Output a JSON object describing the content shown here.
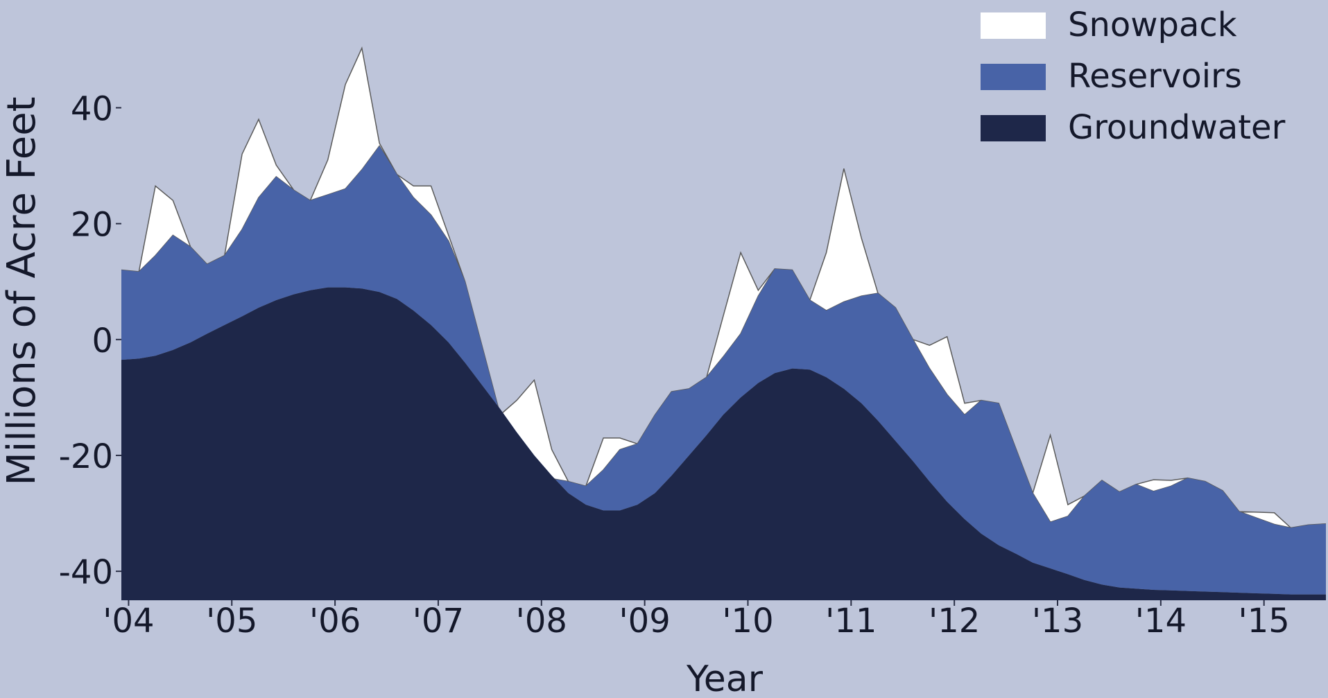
{
  "chart_data": {
    "type": "area",
    "stacked": true,
    "title": "",
    "xlabel": "Year",
    "ylabel": "Millions of Acre Feet",
    "xlim": [
      2004.0,
      2015.67
    ],
    "ylim": [
      -45,
      58
    ],
    "x_ticks": [
      {
        "value": 2004.07,
        "label": "'04"
      },
      {
        "value": 2005.07,
        "label": "'05"
      },
      {
        "value": 2006.07,
        "label": "'06"
      },
      {
        "value": 2007.07,
        "label": "'07"
      },
      {
        "value": 2008.07,
        "label": "'08"
      },
      {
        "value": 2009.07,
        "label": "'09"
      },
      {
        "value": 2010.07,
        "label": "'10"
      },
      {
        "value": 2011.07,
        "label": "'11"
      },
      {
        "value": 2012.07,
        "label": "'12"
      },
      {
        "value": 2013.07,
        "label": "'13"
      },
      {
        "value": 2014.07,
        "label": "'14"
      },
      {
        "value": 2015.07,
        "label": "'15"
      }
    ],
    "y_ticks": [
      {
        "value": 40,
        "label": "40"
      },
      {
        "value": 20,
        "label": "20"
      },
      {
        "value": 0,
        "label": "0"
      },
      {
        "value": -20,
        "label": "-20"
      },
      {
        "value": -40,
        "label": "-40"
      }
    ],
    "grid": false,
    "legend_position": "top-right",
    "legend": [
      {
        "label": "Snowpack",
        "color": "#ffffff"
      },
      {
        "label": "Reservoirs",
        "color": "#4863a7"
      },
      {
        "label": "Groundwater",
        "color": "#1e2749"
      }
    ],
    "x": [
      2004.0,
      2004.17,
      2004.33,
      2004.5,
      2004.67,
      2004.83,
      2005.0,
      2005.17,
      2005.33,
      2005.5,
      2005.67,
      2005.83,
      2006.0,
      2006.17,
      2006.33,
      2006.5,
      2006.67,
      2006.83,
      2007.0,
      2007.17,
      2007.33,
      2007.5,
      2007.67,
      2007.83,
      2008.0,
      2008.17,
      2008.33,
      2008.5,
      2008.67,
      2008.83,
      2009.0,
      2009.17,
      2009.33,
      2009.5,
      2009.67,
      2009.83,
      2010.0,
      2010.17,
      2010.33,
      2010.5,
      2010.67,
      2010.83,
      2011.0,
      2011.17,
      2011.33,
      2011.5,
      2011.67,
      2011.83,
      2012.0,
      2012.17,
      2012.33,
      2012.5,
      2012.67,
      2012.83,
      2013.0,
      2013.17,
      2013.33,
      2013.5,
      2013.67,
      2013.83,
      2014.0,
      2014.17,
      2014.33,
      2014.5,
      2014.67,
      2014.83,
      2015.0,
      2015.17,
      2015.33,
      2015.5,
      2015.67
    ],
    "series": [
      {
        "name": "Groundwater",
        "color": "#1e2749",
        "values": [
          -3.5,
          -3.3,
          -2.8,
          -1.8,
          -0.5,
          1.0,
          2.5,
          4.0,
          5.5,
          6.8,
          7.8,
          8.5,
          9.0,
          9.0,
          8.8,
          8.2,
          7.0,
          5.0,
          2.5,
          -0.5,
          -4.0,
          -8.0,
          -12.0,
          -16.0,
          -20.0,
          -23.5,
          -26.5,
          -28.5,
          -29.5,
          -29.5,
          -28.5,
          -26.5,
          -23.5,
          -20.0,
          -16.5,
          -13.0,
          -10.0,
          -7.5,
          -5.8,
          -5.0,
          -5.2,
          -6.5,
          -8.5,
          -11.0,
          -14.0,
          -17.5,
          -21.0,
          -24.5,
          -28.0,
          -31.0,
          -33.5,
          -35.5,
          -37.0,
          -38.5,
          -39.5,
          -40.5,
          -41.5,
          -42.3,
          -42.8,
          -43.0,
          -43.2,
          -43.3,
          -43.4,
          -43.5,
          -43.6,
          -43.7,
          -43.8,
          -43.9,
          -44.0,
          -44.0,
          -44.0
        ]
      },
      {
        "name": "Reservoirs",
        "color": "#4863a7",
        "values": [
          15.5,
          15.0,
          17.3,
          19.8,
          16.5,
          12.0,
          12.0,
          15.0,
          19.0,
          21.3,
          18.0,
          15.5,
          16.0,
          17.0,
          20.5,
          25.2,
          21.5,
          19.5,
          19.0,
          17.5,
          14.0,
          6.5,
          -1.0,
          -2.5,
          -3.0,
          -0.5,
          2.0,
          3.2,
          7.0,
          10.5,
          10.5,
          13.5,
          14.5,
          11.5,
          10.0,
          10.0,
          11.0,
          15.0,
          18.0,
          17.0,
          12.0,
          11.5,
          15.0,
          18.5,
          22.0,
          23.0,
          21.0,
          19.5,
          18.5,
          18.0,
          23.0,
          24.5,
          18.0,
          12.0,
          8.0,
          10.0,
          14.5,
          18.0,
          16.5,
          18.0,
          17.0,
          18.0,
          19.5,
          19.0,
          17.5,
          14.0,
          13.0,
          12.0,
          11.5,
          12.0,
          12.2
        ]
      },
      {
        "name": "Snowpack",
        "color": "#ffffff",
        "values": [
          0.0,
          0.0,
          12.0,
          6.0,
          0.0,
          0.0,
          0.0,
          13.0,
          13.5,
          2.0,
          0.0,
          0.0,
          6.0,
          18.0,
          21.0,
          0.5,
          0.0,
          2.0,
          5.0,
          1.0,
          0.0,
          0.0,
          0.0,
          8.0,
          16.0,
          5.0,
          0.0,
          0.0,
          5.5,
          2.0,
          0.0,
          0.0,
          0.0,
          0.0,
          0.0,
          7.0,
          14.0,
          1.0,
          0.0,
          0.0,
          0.0,
          10.0,
          23.0,
          10.0,
          0.0,
          0.0,
          0.0,
          4.0,
          10.0,
          2.0,
          0.0,
          0.0,
          0.0,
          0.0,
          15.0,
          2.0,
          0.0,
          0.0,
          0.0,
          0.0,
          2.0,
          1.0,
          0.0,
          0.0,
          0.0,
          0.0,
          1.0,
          2.0,
          0.0,
          0.0,
          0.0
        ]
      }
    ]
  }
}
